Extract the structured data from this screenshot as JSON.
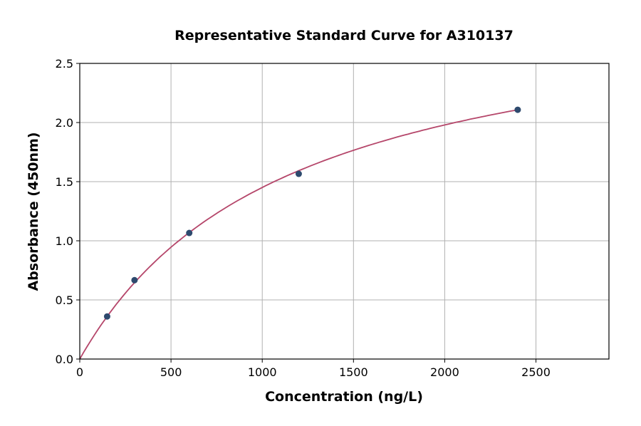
{
  "chart_data": {
    "type": "scatter",
    "title": "Representative Standard Curve for A310137",
    "xlabel": "Concentration (ng/L)",
    "ylabel": "Absorbance (450nm)",
    "xlim": [
      0,
      2900
    ],
    "ylim": [
      0,
      2.5
    ],
    "xticks": [
      0,
      500,
      1000,
      1500,
      2000,
      2500
    ],
    "yticks": [
      "0.0",
      "0.5",
      "1.0",
      "1.5",
      "2.0",
      "2.5"
    ],
    "grid": true,
    "points": {
      "x": [
        150,
        300,
        600,
        1200,
        2400
      ],
      "y": [
        0.36,
        0.667,
        1.066,
        1.566,
        2.108
      ]
    },
    "fit_curve": "fitted standard curve through origin",
    "colors": {
      "points": "#2e4a6e",
      "curve": "#b5466a",
      "grid": "#b0b0b0"
    }
  }
}
